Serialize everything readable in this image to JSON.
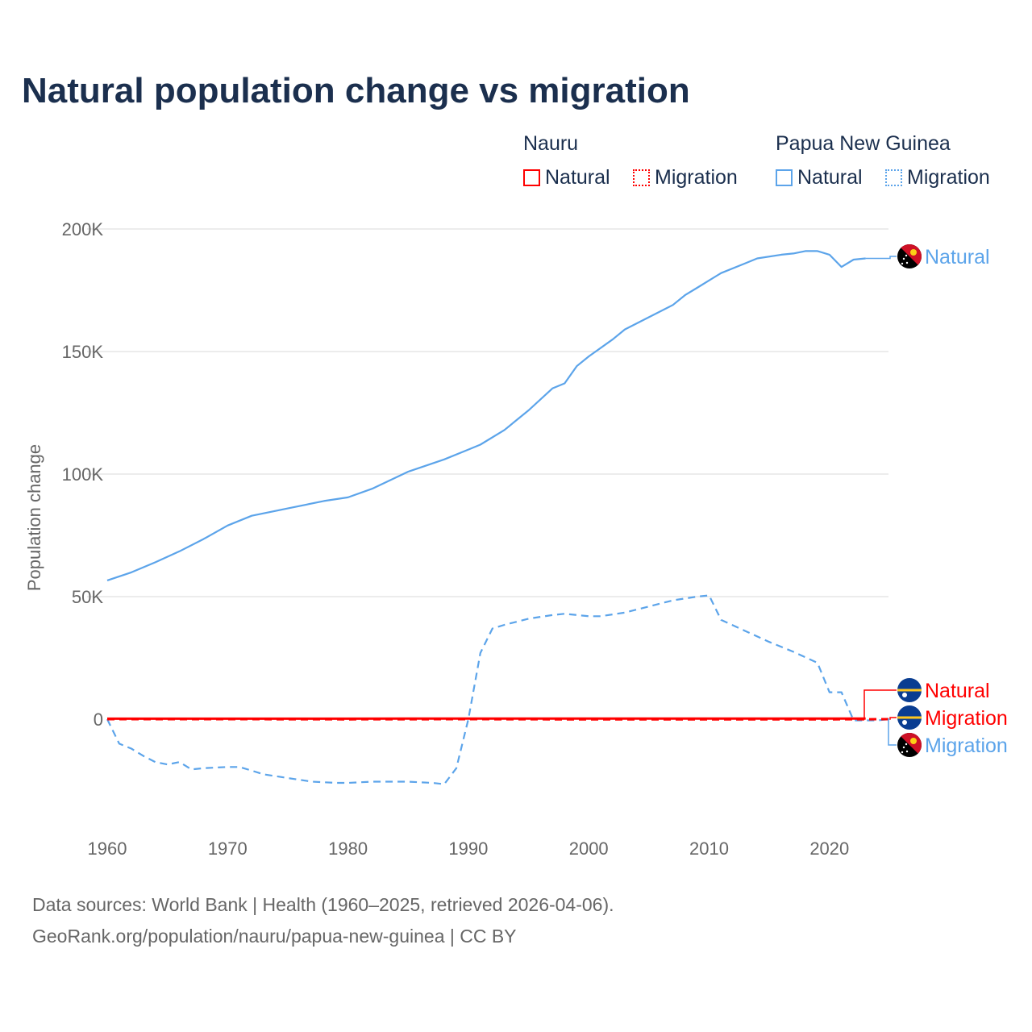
{
  "title": "Natural population change vs migration",
  "legend": {
    "groups": [
      {
        "name": "Nauru",
        "color": "#ff0000",
        "items": [
          "Natural",
          "Migration"
        ]
      },
      {
        "name": "Papua New Guinea",
        "color": "#5ca4ea",
        "items": [
          "Natural",
          "Migration"
        ]
      }
    ]
  },
  "footer": {
    "line1": "Data sources: World Bank | Health (1960–2025, retrieved 2026-04-06).",
    "line2": "GeoRank.org/population/nauru/papua-new-guinea | CC BY"
  },
  "chart_data": {
    "type": "line",
    "title": "Natural population change vs migration",
    "xlabel": "",
    "ylabel": "Population change",
    "xlim": [
      1960,
      2025
    ],
    "ylim": [
      -35000,
      200000
    ],
    "x_ticks": [
      1960,
      1970,
      1980,
      1990,
      2000,
      2010,
      2020
    ],
    "y_ticks": [
      {
        "v": 0,
        "label": "0"
      },
      {
        "v": 50000,
        "label": "50K"
      },
      {
        "v": 100000,
        "label": "100K"
      },
      {
        "v": 150000,
        "label": "150K"
      },
      {
        "v": 200000,
        "label": "200K"
      }
    ],
    "grid": true,
    "legend_position": "top-right",
    "series": [
      {
        "name": "Papua New Guinea Natural",
        "label": "Natural",
        "country": "Papua New Guinea",
        "color": "#5ca4ea",
        "dash": false,
        "points": [
          [
            1960,
            56600
          ],
          [
            1962,
            59900
          ],
          [
            1964,
            64000
          ],
          [
            1966,
            68500
          ],
          [
            1968,
            73500
          ],
          [
            1970,
            79000
          ],
          [
            1972,
            83000
          ],
          [
            1975,
            86000
          ],
          [
            1978,
            89000
          ],
          [
            1980,
            90500
          ],
          [
            1982,
            94000
          ],
          [
            1985,
            101000
          ],
          [
            1988,
            106000
          ],
          [
            1990,
            110000
          ],
          [
            1991,
            112000
          ],
          [
            1993,
            118000
          ],
          [
            1995,
            126000
          ],
          [
            1997,
            135000
          ],
          [
            1998,
            137000
          ],
          [
            1999,
            144000
          ],
          [
            2000,
            148000
          ],
          [
            2002,
            155000
          ],
          [
            2003,
            159000
          ],
          [
            2005,
            164000
          ],
          [
            2007,
            169000
          ],
          [
            2008,
            173000
          ],
          [
            2009,
            176000
          ],
          [
            2010,
            179000
          ],
          [
            2011,
            182000
          ],
          [
            2013,
            186000
          ],
          [
            2014,
            188000
          ],
          [
            2016,
            189500
          ],
          [
            2017,
            190000
          ],
          [
            2018,
            191000
          ],
          [
            2019,
            191000
          ],
          [
            2020,
            189500
          ],
          [
            2021,
            184500
          ],
          [
            2022,
            187500
          ],
          [
            2023,
            188000
          ]
        ]
      },
      {
        "name": "Papua New Guinea Migration",
        "label": "Migration",
        "country": "Papua New Guinea",
        "color": "#5ca4ea",
        "dash": true,
        "points": [
          [
            1960,
            0
          ],
          [
            1961,
            -10000
          ],
          [
            1962,
            -12000
          ],
          [
            1963,
            -15000
          ],
          [
            1964,
            -17500
          ],
          [
            1965,
            -18500
          ],
          [
            1966,
            -17500
          ],
          [
            1967,
            -20500
          ],
          [
            1968,
            -20000
          ],
          [
            1970,
            -19500
          ],
          [
            1971,
            -19500
          ],
          [
            1972,
            -21000
          ],
          [
            1973,
            -22500
          ],
          [
            1975,
            -24000
          ],
          [
            1977,
            -25500
          ],
          [
            1979,
            -26000
          ],
          [
            1980,
            -26000
          ],
          [
            1982,
            -25500
          ],
          [
            1985,
            -25500
          ],
          [
            1987,
            -26000
          ],
          [
            1988,
            -26500
          ],
          [
            1989,
            -20000
          ],
          [
            1990,
            0
          ],
          [
            1991,
            27000
          ],
          [
            1992,
            37000
          ],
          [
            1993,
            38500
          ],
          [
            1995,
            41000
          ],
          [
            1997,
            42500
          ],
          [
            1998,
            43000
          ],
          [
            2000,
            42000
          ],
          [
            2001,
            42000
          ],
          [
            2003,
            43500
          ],
          [
            2005,
            46000
          ],
          [
            2007,
            48500
          ],
          [
            2009,
            50000
          ],
          [
            2010,
            50500
          ],
          [
            2011,
            40500
          ],
          [
            2013,
            36000
          ],
          [
            2015,
            31500
          ],
          [
            2017,
            27500
          ],
          [
            2019,
            23000
          ],
          [
            2020,
            11000
          ],
          [
            2021,
            11000
          ],
          [
            2022,
            -500
          ],
          [
            2023,
            -500
          ],
          [
            2024,
            -500
          ],
          [
            2025,
            0
          ]
        ]
      },
      {
        "name": "Nauru Natural",
        "label": "Natural",
        "country": "Nauru",
        "color": "#ff0000",
        "dash": false,
        "points": [
          [
            1960,
            200
          ],
          [
            1970,
            200
          ],
          [
            1980,
            200
          ],
          [
            1990,
            250
          ],
          [
            2000,
            250
          ],
          [
            2010,
            250
          ],
          [
            2020,
            250
          ],
          [
            2023,
            250
          ]
        ]
      },
      {
        "name": "Nauru Migration",
        "label": "Migration",
        "country": "Nauru",
        "color": "#ff0000",
        "dash": true,
        "points": [
          [
            1960,
            0
          ],
          [
            1970,
            0
          ],
          [
            1980,
            -50
          ],
          [
            1990,
            0
          ],
          [
            2000,
            -100
          ],
          [
            2010,
            -100
          ],
          [
            2020,
            -50
          ],
          [
            2025,
            0
          ]
        ]
      }
    ]
  }
}
